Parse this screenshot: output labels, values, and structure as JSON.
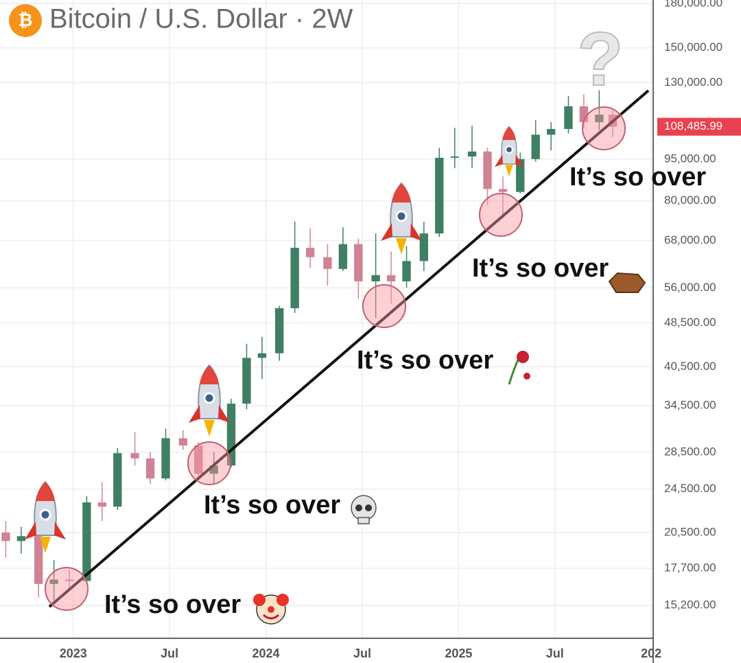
{
  "chart_data": {
    "type": "candlestick",
    "title": "Bitcoin / U.S. Dollar · 2W",
    "logo": "₿",
    "log_scale": true,
    "grid": true,
    "up_color": "#3f7f63",
    "down_color": "#cf8394",
    "x": [
      2022.65,
      2022.73,
      2022.82,
      2022.9,
      2022.98,
      2023.07,
      2023.15,
      2023.23,
      2023.32,
      2023.4,
      2023.48,
      2023.57,
      2023.65,
      2023.73,
      2023.82,
      2023.9,
      2023.98,
      2024.07,
      2024.15,
      2024.23,
      2024.32,
      2024.4,
      2024.48,
      2024.57,
      2024.65,
      2024.73,
      2024.82,
      2024.9,
      2024.98,
      2025.07,
      2025.15,
      2025.23,
      2025.32,
      2025.4,
      2025.48,
      2025.57,
      2025.65,
      2025.73,
      2025.8
    ],
    "open": [
      20500,
      19800,
      20200,
      16600,
      16900,
      16800,
      23200,
      22800,
      28400,
      27800,
      25600,
      30200,
      29300,
      26100,
      27000,
      34800,
      42000,
      42800,
      51500,
      66000,
      63500,
      60500,
      67000,
      57500,
      59000,
      57500,
      62500,
      70000,
      95500,
      96000,
      98000,
      84000,
      83000,
      95000,
      105000,
      107500,
      118000,
      110500,
      114000
    ],
    "high": [
      21500,
      21000,
      21200,
      18300,
      17600,
      23800,
      25200,
      29000,
      31000,
      28500,
      31400,
      31200,
      29700,
      28500,
      35500,
      44500,
      45800,
      52000,
      73500,
      71500,
      67000,
      71800,
      68500,
      70000,
      65000,
      66500,
      73500,
      99500,
      108000,
      109000,
      99500,
      88500,
      97500,
      111500,
      110500,
      123000,
      124000,
      126000,
      116000
    ],
    "low": [
      18500,
      18800,
      15700,
      15500,
      16300,
      16600,
      21500,
      22500,
      27000,
      25000,
      25400,
      28800,
      25500,
      25000,
      26800,
      34000,
      38500,
      41500,
      50500,
      60800,
      56500,
      60000,
      53500,
      49500,
      52500,
      56000,
      60000,
      69000,
      91500,
      91500,
      78500,
      74500,
      82500,
      94000,
      98500,
      105500,
      108000,
      107000,
      104000
    ],
    "close": [
      19800,
      20200,
      16600,
      16900,
      16800,
      23200,
      22800,
      28400,
      27800,
      25600,
      30200,
      29300,
      26100,
      27000,
      34800,
      42000,
      42800,
      51500,
      66000,
      63500,
      60500,
      67000,
      57500,
      59000,
      57500,
      62500,
      70000,
      95500,
      96000,
      98000,
      84000,
      83000,
      95000,
      105000,
      107500,
      118000,
      110500,
      114000,
      108485.99
    ],
    "xlim": [
      2022.62,
      2026.01
    ],
    "xticks": [
      2023,
      {
        "value": 2023.5,
        "label": "Jul"
      },
      2024,
      {
        "value": 2024.5,
        "label": "Jul"
      },
      2025,
      {
        "value": 2025.5,
        "label": "Jul"
      },
      {
        "value": 2026,
        "label": "202"
      }
    ],
    "ylim": [
      13280,
      182550
    ],
    "yticks": [
      {
        "value": 15200,
        "label": "15,200.00"
      },
      {
        "value": 17700,
        "label": "17,700.00"
      },
      {
        "value": 20500,
        "label": "20,500.00"
      },
      {
        "value": 24500,
        "label": "24,500.00"
      },
      {
        "value": 28500,
        "label": "28,500.00"
      },
      {
        "value": 34500,
        "label": "34,500.00"
      },
      {
        "value": 40500,
        "label": "40,500.00"
      },
      {
        "value": 48500,
        "label": "48,500.00"
      },
      {
        "value": 56000,
        "label": "56,000.00"
      },
      {
        "value": 68000,
        "label": "68,000.00"
      },
      {
        "value": 80000,
        "label": "80,000.00"
      },
      {
        "value": 95000,
        "label": "95,000.00"
      },
      {
        "value": 130000,
        "label": "130,000.00"
      },
      {
        "value": 150000,
        "label": "150,000.00"
      },
      {
        "value": 180000,
        "label": "180,000.00"
      }
    ],
    "last_price": {
      "value": 108485.99,
      "label": "108,485.99"
    },
    "last_price_color": "#e8414f",
    "annotations": [
      "It’s so over",
      "It’s so over",
      "It’s so over",
      "It’s so over",
      "It’s so over",
      "?"
    ]
  }
}
